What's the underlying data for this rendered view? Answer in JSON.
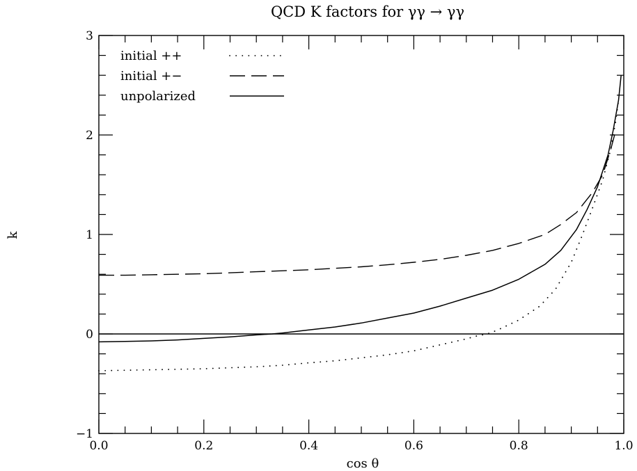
{
  "chart_data": {
    "type": "line",
    "title": "QCD K factors for γγ → γγ",
    "xlabel": "cos θ",
    "ylabel": "k",
    "xlim": [
      0.0,
      1.0
    ],
    "ylim": [
      -1,
      3
    ],
    "x_ticks": [
      "0.0",
      "0.2",
      "0.4",
      "0.6",
      "0.8",
      "1.0"
    ],
    "y_ticks": [
      "−1",
      "0",
      "1",
      "2",
      "3"
    ],
    "reference_line_y": 0,
    "legend_position": "top-left",
    "series": [
      {
        "name": "initial ++",
        "style": "dotted",
        "points": [
          [
            0.0,
            -0.37
          ],
          [
            0.05,
            -0.365
          ],
          [
            0.1,
            -0.36
          ],
          [
            0.15,
            -0.355
          ],
          [
            0.2,
            -0.35
          ],
          [
            0.25,
            -0.34
          ],
          [
            0.3,
            -0.33
          ],
          [
            0.35,
            -0.315
          ],
          [
            0.4,
            -0.29
          ],
          [
            0.45,
            -0.27
          ],
          [
            0.5,
            -0.24
          ],
          [
            0.55,
            -0.21
          ],
          [
            0.6,
            -0.17
          ],
          [
            0.65,
            -0.11
          ],
          [
            0.7,
            -0.05
          ],
          [
            0.72,
            -0.02
          ],
          [
            0.74,
            0.0
          ],
          [
            0.76,
            0.04
          ],
          [
            0.8,
            0.14
          ],
          [
            0.84,
            0.28
          ],
          [
            0.87,
            0.45
          ],
          [
            0.9,
            0.72
          ],
          [
            0.92,
            0.98
          ],
          [
            0.94,
            1.26
          ],
          [
            0.96,
            1.55
          ],
          [
            0.975,
            1.85
          ],
          [
            0.985,
            2.15
          ],
          [
            0.99,
            2.35
          ]
        ]
      },
      {
        "name": "initial +−",
        "style": "dashed",
        "points": [
          [
            0.0,
            0.59
          ],
          [
            0.05,
            0.59
          ],
          [
            0.1,
            0.595
          ],
          [
            0.15,
            0.6
          ],
          [
            0.2,
            0.605
          ],
          [
            0.25,
            0.615
          ],
          [
            0.3,
            0.625
          ],
          [
            0.35,
            0.635
          ],
          [
            0.4,
            0.645
          ],
          [
            0.45,
            0.66
          ],
          [
            0.5,
            0.675
          ],
          [
            0.55,
            0.695
          ],
          [
            0.6,
            0.72
          ],
          [
            0.65,
            0.75
          ],
          [
            0.7,
            0.79
          ],
          [
            0.75,
            0.84
          ],
          [
            0.8,
            0.91
          ],
          [
            0.85,
            1.0
          ],
          [
            0.88,
            1.1
          ],
          [
            0.91,
            1.22
          ],
          [
            0.94,
            1.42
          ],
          [
            0.96,
            1.6
          ],
          [
            0.975,
            1.85
          ],
          [
            0.985,
            2.05
          ]
        ]
      },
      {
        "name": "unpolarized",
        "style": "solid",
        "points": [
          [
            0.0,
            -0.08
          ],
          [
            0.05,
            -0.075
          ],
          [
            0.1,
            -0.07
          ],
          [
            0.15,
            -0.06
          ],
          [
            0.2,
            -0.045
          ],
          [
            0.25,
            -0.03
          ],
          [
            0.3,
            -0.01
          ],
          [
            0.33,
            0.0
          ],
          [
            0.35,
            0.01
          ],
          [
            0.4,
            0.04
          ],
          [
            0.45,
            0.07
          ],
          [
            0.5,
            0.11
          ],
          [
            0.55,
            0.16
          ],
          [
            0.6,
            0.21
          ],
          [
            0.65,
            0.28
          ],
          [
            0.7,
            0.36
          ],
          [
            0.75,
            0.44
          ],
          [
            0.8,
            0.55
          ],
          [
            0.85,
            0.7
          ],
          [
            0.88,
            0.84
          ],
          [
            0.91,
            1.05
          ],
          [
            0.93,
            1.25
          ],
          [
            0.95,
            1.48
          ],
          [
            0.97,
            1.8
          ],
          [
            0.98,
            2.05
          ],
          [
            0.99,
            2.35
          ],
          [
            0.995,
            2.6
          ]
        ]
      }
    ]
  }
}
